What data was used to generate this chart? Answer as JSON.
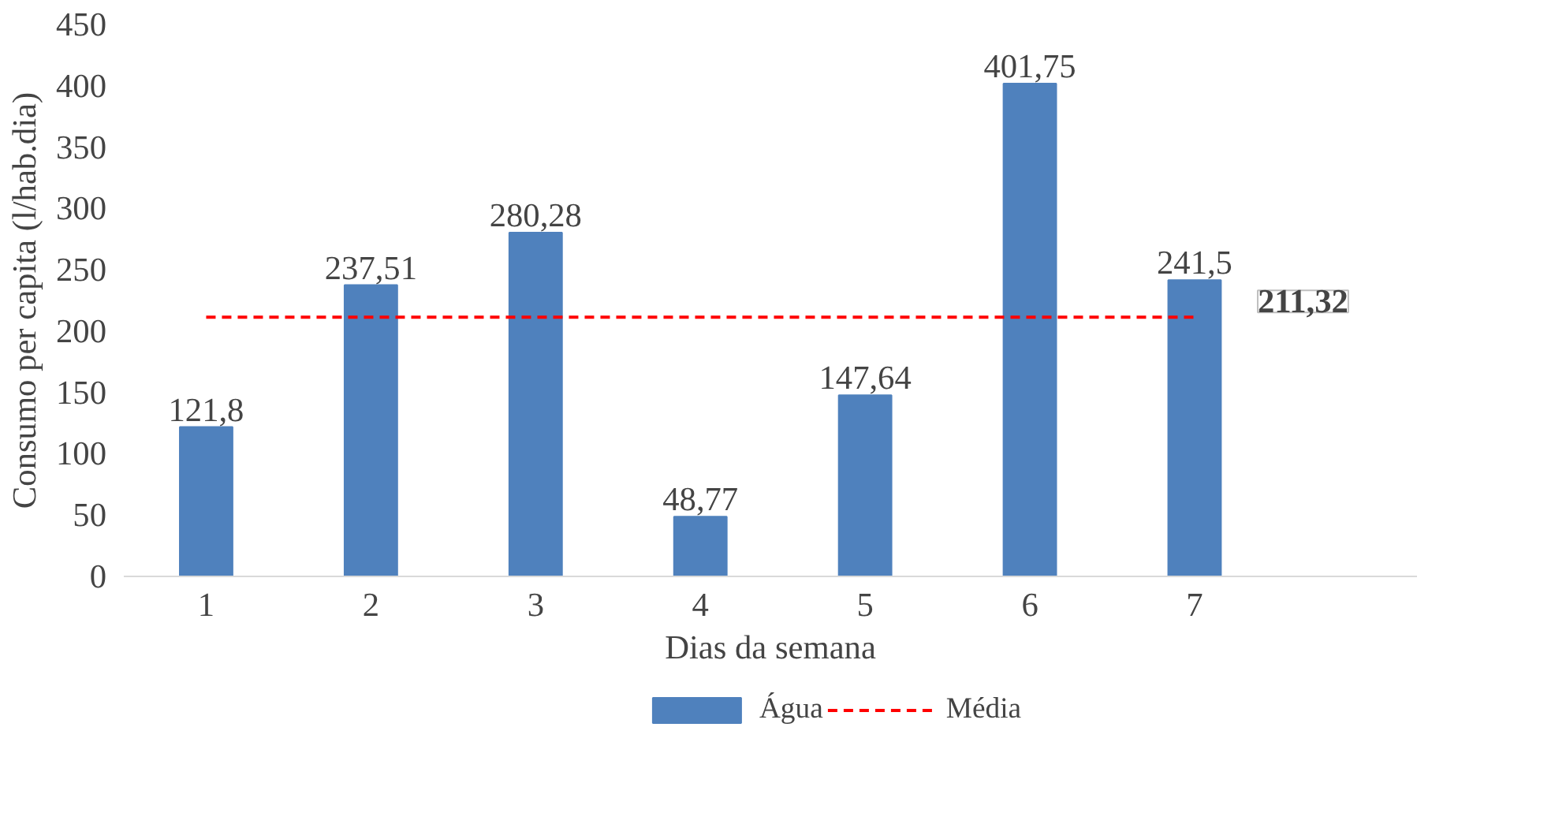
{
  "chart_data": {
    "type": "bar",
    "xlabel": "Dias da semana",
    "ylabel": "Consumo per capita (l/hab.dia)",
    "categories": [
      "1",
      "2",
      "3",
      "4",
      "5",
      "6",
      "7"
    ],
    "series": [
      {
        "name": "Água",
        "color": "#4f81bd",
        "values": [
          121.8,
          237.51,
          280.28,
          48.77,
          147.64,
          401.75,
          241.5
        ],
        "value_labels": [
          "121,8",
          "237,51",
          "280,28",
          "48,77",
          "147,64",
          "401,75",
          "241,5"
        ]
      },
      {
        "name": "Média",
        "type": "line",
        "color": "#ff0000",
        "line_style": "dashed",
        "values": [
          211.32,
          211.32,
          211.32,
          211.32,
          211.32,
          211.32,
          211.32
        ],
        "value_labels": [
          null,
          null,
          null,
          null,
          null,
          null,
          "211,32"
        ]
      }
    ],
    "ylim": [
      0,
      450
    ],
    "yticks": [
      0,
      50,
      100,
      150,
      200,
      250,
      300,
      350,
      400,
      450
    ],
    "legend": "bottom"
  }
}
